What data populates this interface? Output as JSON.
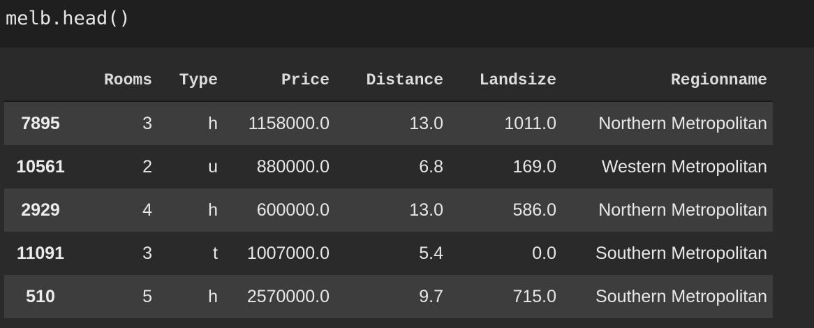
{
  "code_cell": {
    "source": "melb.head()"
  },
  "dataframe": {
    "columns": [
      "Rooms",
      "Type",
      "Price",
      "Distance",
      "Landsize",
      "Regionname"
    ],
    "rows": [
      {
        "index": "7895",
        "cells": [
          "3",
          "h",
          "1158000.0",
          "13.0",
          "1011.0",
          "Northern Metropolitan"
        ]
      },
      {
        "index": "10561",
        "cells": [
          "2",
          "u",
          "880000.0",
          "6.8",
          "169.0",
          "Western Metropolitan"
        ]
      },
      {
        "index": "2929",
        "cells": [
          "4",
          "h",
          "600000.0",
          "13.0",
          "586.0",
          "Northern Metropolitan"
        ]
      },
      {
        "index": "11091",
        "cells": [
          "3",
          "t",
          "1007000.0",
          "5.4",
          "0.0",
          "Southern Metropolitan"
        ]
      },
      {
        "index": "510",
        "cells": [
          "5",
          "h",
          "2570000.0",
          "9.7",
          "715.0",
          "Southern Metropolitan"
        ]
      }
    ]
  }
}
